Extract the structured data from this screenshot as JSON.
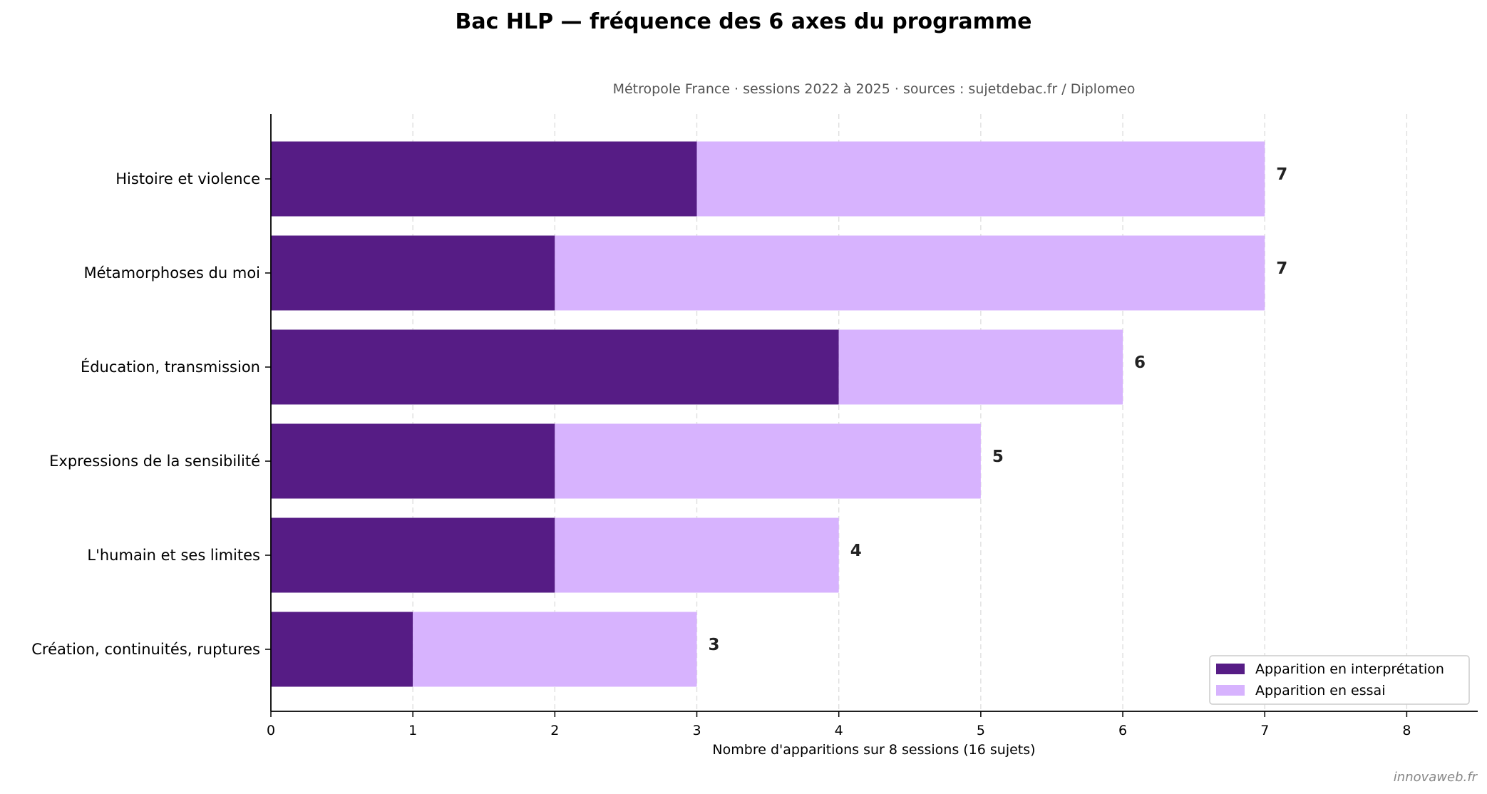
{
  "chart_data": {
    "type": "bar",
    "orientation": "horizontal",
    "stacked": true,
    "title": "Bac HLP — fréquence des 6 axes du programme",
    "subtitle": "Métropole France · sessions 2022 à 2025 · sources : sujetdebac.fr / Diplomeo",
    "xlabel": "Nombre d'apparitions sur 8 sessions (16 sujets)",
    "ylabel": "",
    "xlim": [
      0,
      8.5
    ],
    "xticks": [
      0,
      1,
      2,
      3,
      4,
      5,
      6,
      7,
      8
    ],
    "grid": "vertical-dashed",
    "legend_position": "bottom-right",
    "categories": [
      "Histoire et violence",
      "Métamorphoses du moi",
      "Éducation, transmission",
      "Expressions de la sensibilité",
      "L'humain et ses limites",
      "Création, continuités, ruptures"
    ],
    "series": [
      {
        "name": "Apparition en interprétation",
        "color": "#561c85",
        "values": [
          3,
          2,
          4,
          2,
          2,
          1
        ]
      },
      {
        "name": "Apparition en essai",
        "color": "#d7b3fe",
        "values": [
          4,
          5,
          2,
          3,
          2,
          2
        ]
      }
    ],
    "totals": [
      "7",
      "7",
      "6",
      "5",
      "4",
      "3"
    ]
  },
  "credit": "innovaweb.fr"
}
